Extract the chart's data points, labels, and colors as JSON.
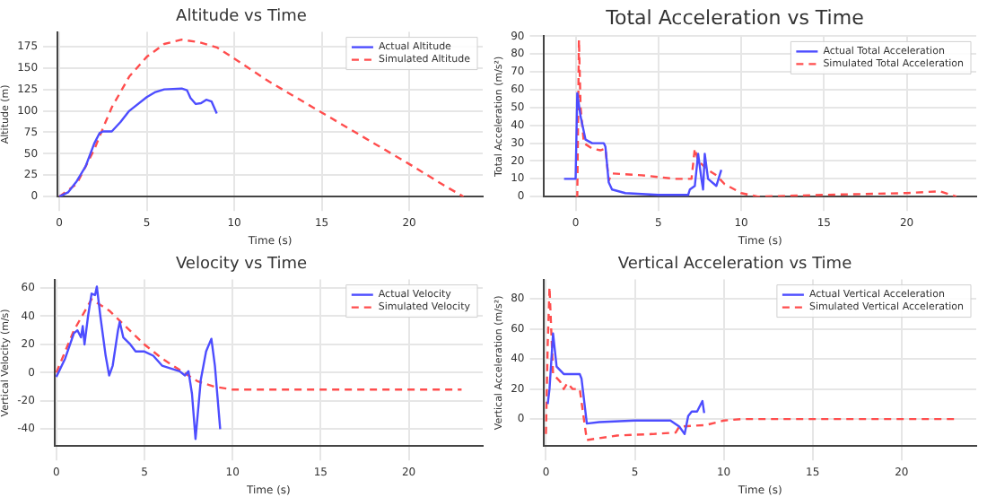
{
  "chart_data": [
    {
      "type": "line",
      "title": "Altitude vs Time",
      "xlabel": "Time (s)",
      "ylabel": "Altitude (m)",
      "xlim": [
        -0.1,
        24.2
      ],
      "xticks": [
        0,
        5,
        10,
        15,
        20
      ],
      "ylim": [
        0,
        192
      ],
      "yticks": [
        0,
        25,
        50,
        75,
        100,
        125,
        150,
        175
      ],
      "grid": true,
      "legend": "top right",
      "marker": "none",
      "series": [
        {
          "name": "Actual Altitude",
          "color": "#4d4dff",
          "line_style": "solid",
          "x": [
            0,
            0.5,
            1,
            1.5,
            2,
            2.3,
            2.5,
            3,
            3.5,
            4,
            5,
            5.5,
            6,
            7,
            7.3,
            7.5,
            7.8,
            8.1,
            8.4,
            8.7,
            9
          ],
          "values": [
            0,
            5,
            18,
            35,
            62,
            74,
            76,
            76,
            87,
            100,
            116,
            122,
            125,
            126,
            124,
            115,
            108,
            109,
            113,
            111,
            97
          ]
        },
        {
          "name": "Simulated Altitude",
          "color": "#ff4d4d",
          "line_style": "dashed",
          "x": [
            0,
            1,
            2,
            2.5,
            3,
            4,
            5,
            6,
            7,
            8,
            9,
            10,
            12,
            15,
            18,
            20,
            22,
            23.1
          ],
          "values": [
            0,
            15,
            55,
            80,
            104,
            140,
            163,
            178,
            183,
            180,
            174,
            161,
            134,
            98,
            62,
            38,
            13,
            0
          ]
        }
      ]
    },
    {
      "type": "line",
      "title": "Total Acceleration vs Time",
      "xlabel": "Time (s)",
      "ylabel": "Total Acceleration (m/s²)",
      "xlim": [
        -1.9,
        24.2
      ],
      "xticks": [
        0,
        5,
        10,
        15,
        20
      ],
      "ylim": [
        0,
        90
      ],
      "yticks": [
        0,
        10,
        20,
        30,
        40,
        50,
        60,
        70,
        80,
        90
      ],
      "grid": true,
      "legend": "top right",
      "marker": "none",
      "series": [
        {
          "name": "Actual Total Acceleration",
          "color": "#4d4dff",
          "line_style": "solid",
          "x": [
            -0.7,
            0,
            0.1,
            0.3,
            0.6,
            1,
            1.7,
            1.8,
            2,
            2.2,
            3,
            5,
            6.8,
            6.9,
            7.2,
            7.4,
            7.6,
            7.7,
            7.8,
            8,
            8.5,
            8.8
          ],
          "values": [
            10,
            10,
            58,
            45,
            32,
            30,
            30,
            28,
            8,
            4,
            2,
            1,
            1,
            4,
            6,
            24,
            10,
            4,
            24,
            10,
            6,
            15
          ]
        },
        {
          "name": "Simulated Total Acceleration",
          "color": "#ff4d4d",
          "line_style": "dashed",
          "x": [
            0,
            0.1,
            0.2,
            0.3,
            0.5,
            1,
            1.5,
            1.8,
            2,
            2.2,
            4,
            6,
            7,
            7.2,
            7.4,
            8,
            8.5,
            9,
            10,
            11,
            15,
            20,
            22,
            23
          ],
          "values": [
            0,
            0,
            88,
            50,
            30,
            27,
            26,
            27,
            9,
            13,
            12,
            10,
            10,
            27,
            20,
            15,
            12,
            7,
            2,
            0,
            1,
            2,
            3,
            0
          ]
        }
      ]
    },
    {
      "type": "line",
      "title": "Velocity vs Time",
      "xlabel": "Time (s)",
      "ylabel": "Vertical Velocity (m/s)",
      "xlim": [
        -0.1,
        24.2
      ],
      "xticks": [
        0,
        5,
        10,
        15,
        20
      ],
      "ylim": [
        -52,
        66
      ],
      "yticks": [
        -40,
        -20,
        0,
        20,
        40,
        60
      ],
      "grid": true,
      "legend": "top right",
      "marker": "none",
      "series": [
        {
          "name": "Actual Velocity",
          "color": "#4d4dff",
          "line_style": "solid",
          "x": [
            0,
            0.5,
            1,
            1.2,
            1.4,
            1.5,
            1.6,
            1.8,
            2,
            2.2,
            2.3,
            2.5,
            2.8,
            3,
            3.2,
            3.5,
            3.6,
            3.8,
            4.2,
            4.5,
            5,
            5.5,
            6,
            7,
            7.3,
            7.5,
            7.7,
            7.9,
            8.2,
            8.5,
            8.8,
            9,
            9.3
          ],
          "values": [
            -3,
            10,
            28,
            30,
            25,
            33,
            20,
            40,
            56,
            55,
            61,
            40,
            12,
            -2,
            5,
            30,
            36,
            25,
            20,
            15,
            15,
            12,
            5,
            1,
            -2,
            1,
            -15,
            -47,
            -5,
            15,
            24,
            5,
            -40
          ]
        },
        {
          "name": "Simulated Velocity",
          "color": "#ff4d4d",
          "line_style": "dashed",
          "x": [
            0,
            1,
            2,
            3,
            4,
            5,
            6,
            7,
            8,
            9,
            10,
            12,
            23
          ],
          "values": [
            0,
            30,
            52,
            44,
            32,
            20,
            10,
            2,
            -6,
            -10,
            -12,
            -12,
            -12
          ]
        }
      ]
    },
    {
      "type": "line",
      "title": "Vertical Acceleration vs Time",
      "xlabel": "Time (s)",
      "ylabel": "Vertical Acceleration (m/s²)",
      "xlim": [
        -0.1,
        24.2
      ],
      "xticks": [
        0,
        5,
        10,
        15,
        20
      ],
      "ylim": [
        -18,
        93
      ],
      "yticks": [
        0,
        20,
        40,
        60,
        80
      ],
      "grid": true,
      "legend": "top right",
      "marker": "none",
      "series": [
        {
          "name": "Actual Vertical Acceleration",
          "color": "#4d4dff",
          "line_style": "solid",
          "x": [
            0.1,
            0.2,
            0.4,
            0.6,
            1,
            1.9,
            2,
            2.3,
            3,
            5,
            7,
            7.5,
            7.8,
            8,
            8.2,
            8.5,
            8.8,
            8.9
          ],
          "values": [
            10,
            20,
            57,
            35,
            30,
            30,
            27,
            -3,
            -2,
            -1,
            -1,
            -5,
            -10,
            2,
            5,
            5,
            12,
            4
          ]
        },
        {
          "name": "Simulated Vertical Acceleration",
          "color": "#ff4d4d",
          "line_style": "dashed",
          "x": [
            0,
            0.1,
            0.2,
            0.4,
            0.8,
            1,
            1.2,
            1.5,
            1.9,
            2.3,
            4,
            6,
            7.3,
            7.5,
            9,
            10,
            11,
            23
          ],
          "values": [
            -10,
            50,
            88,
            30,
            25,
            20,
            24,
            20,
            20,
            -14,
            -11,
            -10,
            -9,
            -5,
            -4,
            -1,
            0,
            0
          ]
        }
      ]
    }
  ]
}
